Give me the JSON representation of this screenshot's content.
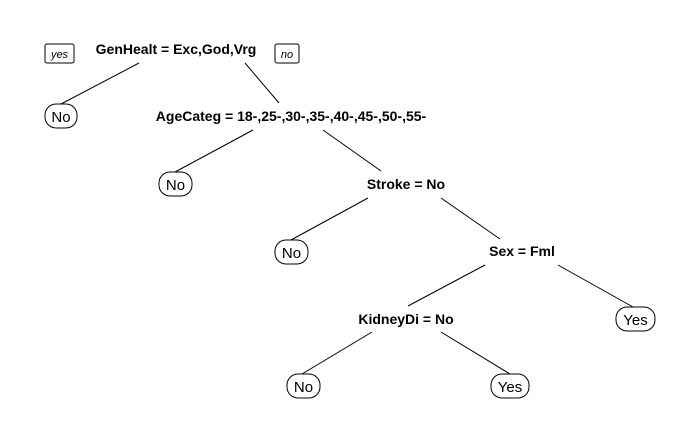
{
  "branch_labels": {
    "left": "yes",
    "right": "no"
  },
  "splits": {
    "root": "GenHealt = Exc,God,Vrg",
    "age": "AgeCateg = 18-,25-,30-,35-,40-,45-,50-,55-",
    "stroke": "Stroke = No",
    "sex": "Sex = Fml",
    "kidney": "KidneyDi = No"
  },
  "leaves": {
    "leaf1": "No",
    "leaf2": "No",
    "leaf3": "No",
    "leaf4": "No",
    "leaf5": "Yes",
    "leaf6": "Yes"
  }
}
